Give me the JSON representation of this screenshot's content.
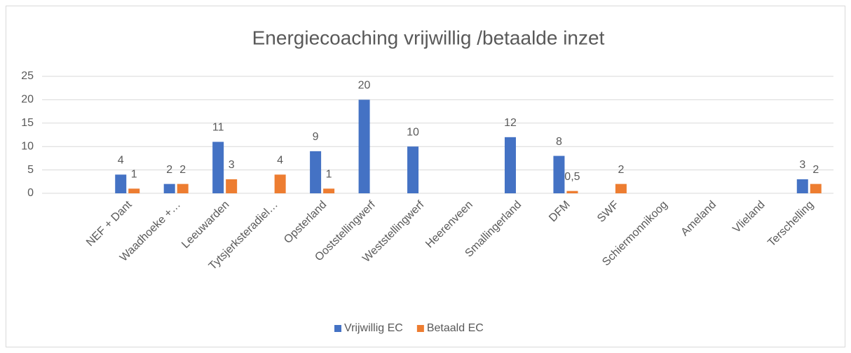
{
  "chart_data": {
    "type": "bar",
    "title": "Energiecoaching vrijwillig /betaalde inzet",
    "categories": [
      "NEF + Dant",
      "Waadhoeke +…",
      "Leeuwarden",
      "Tytsjerksteradiel…",
      "Opsterland",
      "Ooststellingwerf",
      "Weststellingwerf",
      "Heerenveen",
      "Smallingerland",
      "DFM",
      "SWF",
      "Schiermonnikoog",
      "Ameland",
      "Vlieland",
      "Terschelling"
    ],
    "series": [
      {
        "name": "Vrijwillig EC",
        "color": "#4472c4",
        "values": [
          4,
          2,
          11,
          null,
          9,
          20,
          10,
          null,
          12,
          8,
          null,
          null,
          null,
          null,
          3
        ]
      },
      {
        "name": "Betaald EC",
        "color": "#ed7d31",
        "values": [
          1,
          2,
          3,
          4,
          1,
          null,
          null,
          null,
          null,
          0.5,
          2,
          null,
          null,
          null,
          2
        ],
        "value_labels": [
          "1",
          "2",
          "3",
          "4",
          "1",
          null,
          null,
          null,
          null,
          "0,5",
          "2",
          null,
          null,
          null,
          "2"
        ]
      }
    ],
    "ylim": [
      0,
      25
    ],
    "yticks": [
      0,
      5,
      10,
      15,
      20,
      25
    ],
    "grid": true,
    "legend": "bottom"
  }
}
